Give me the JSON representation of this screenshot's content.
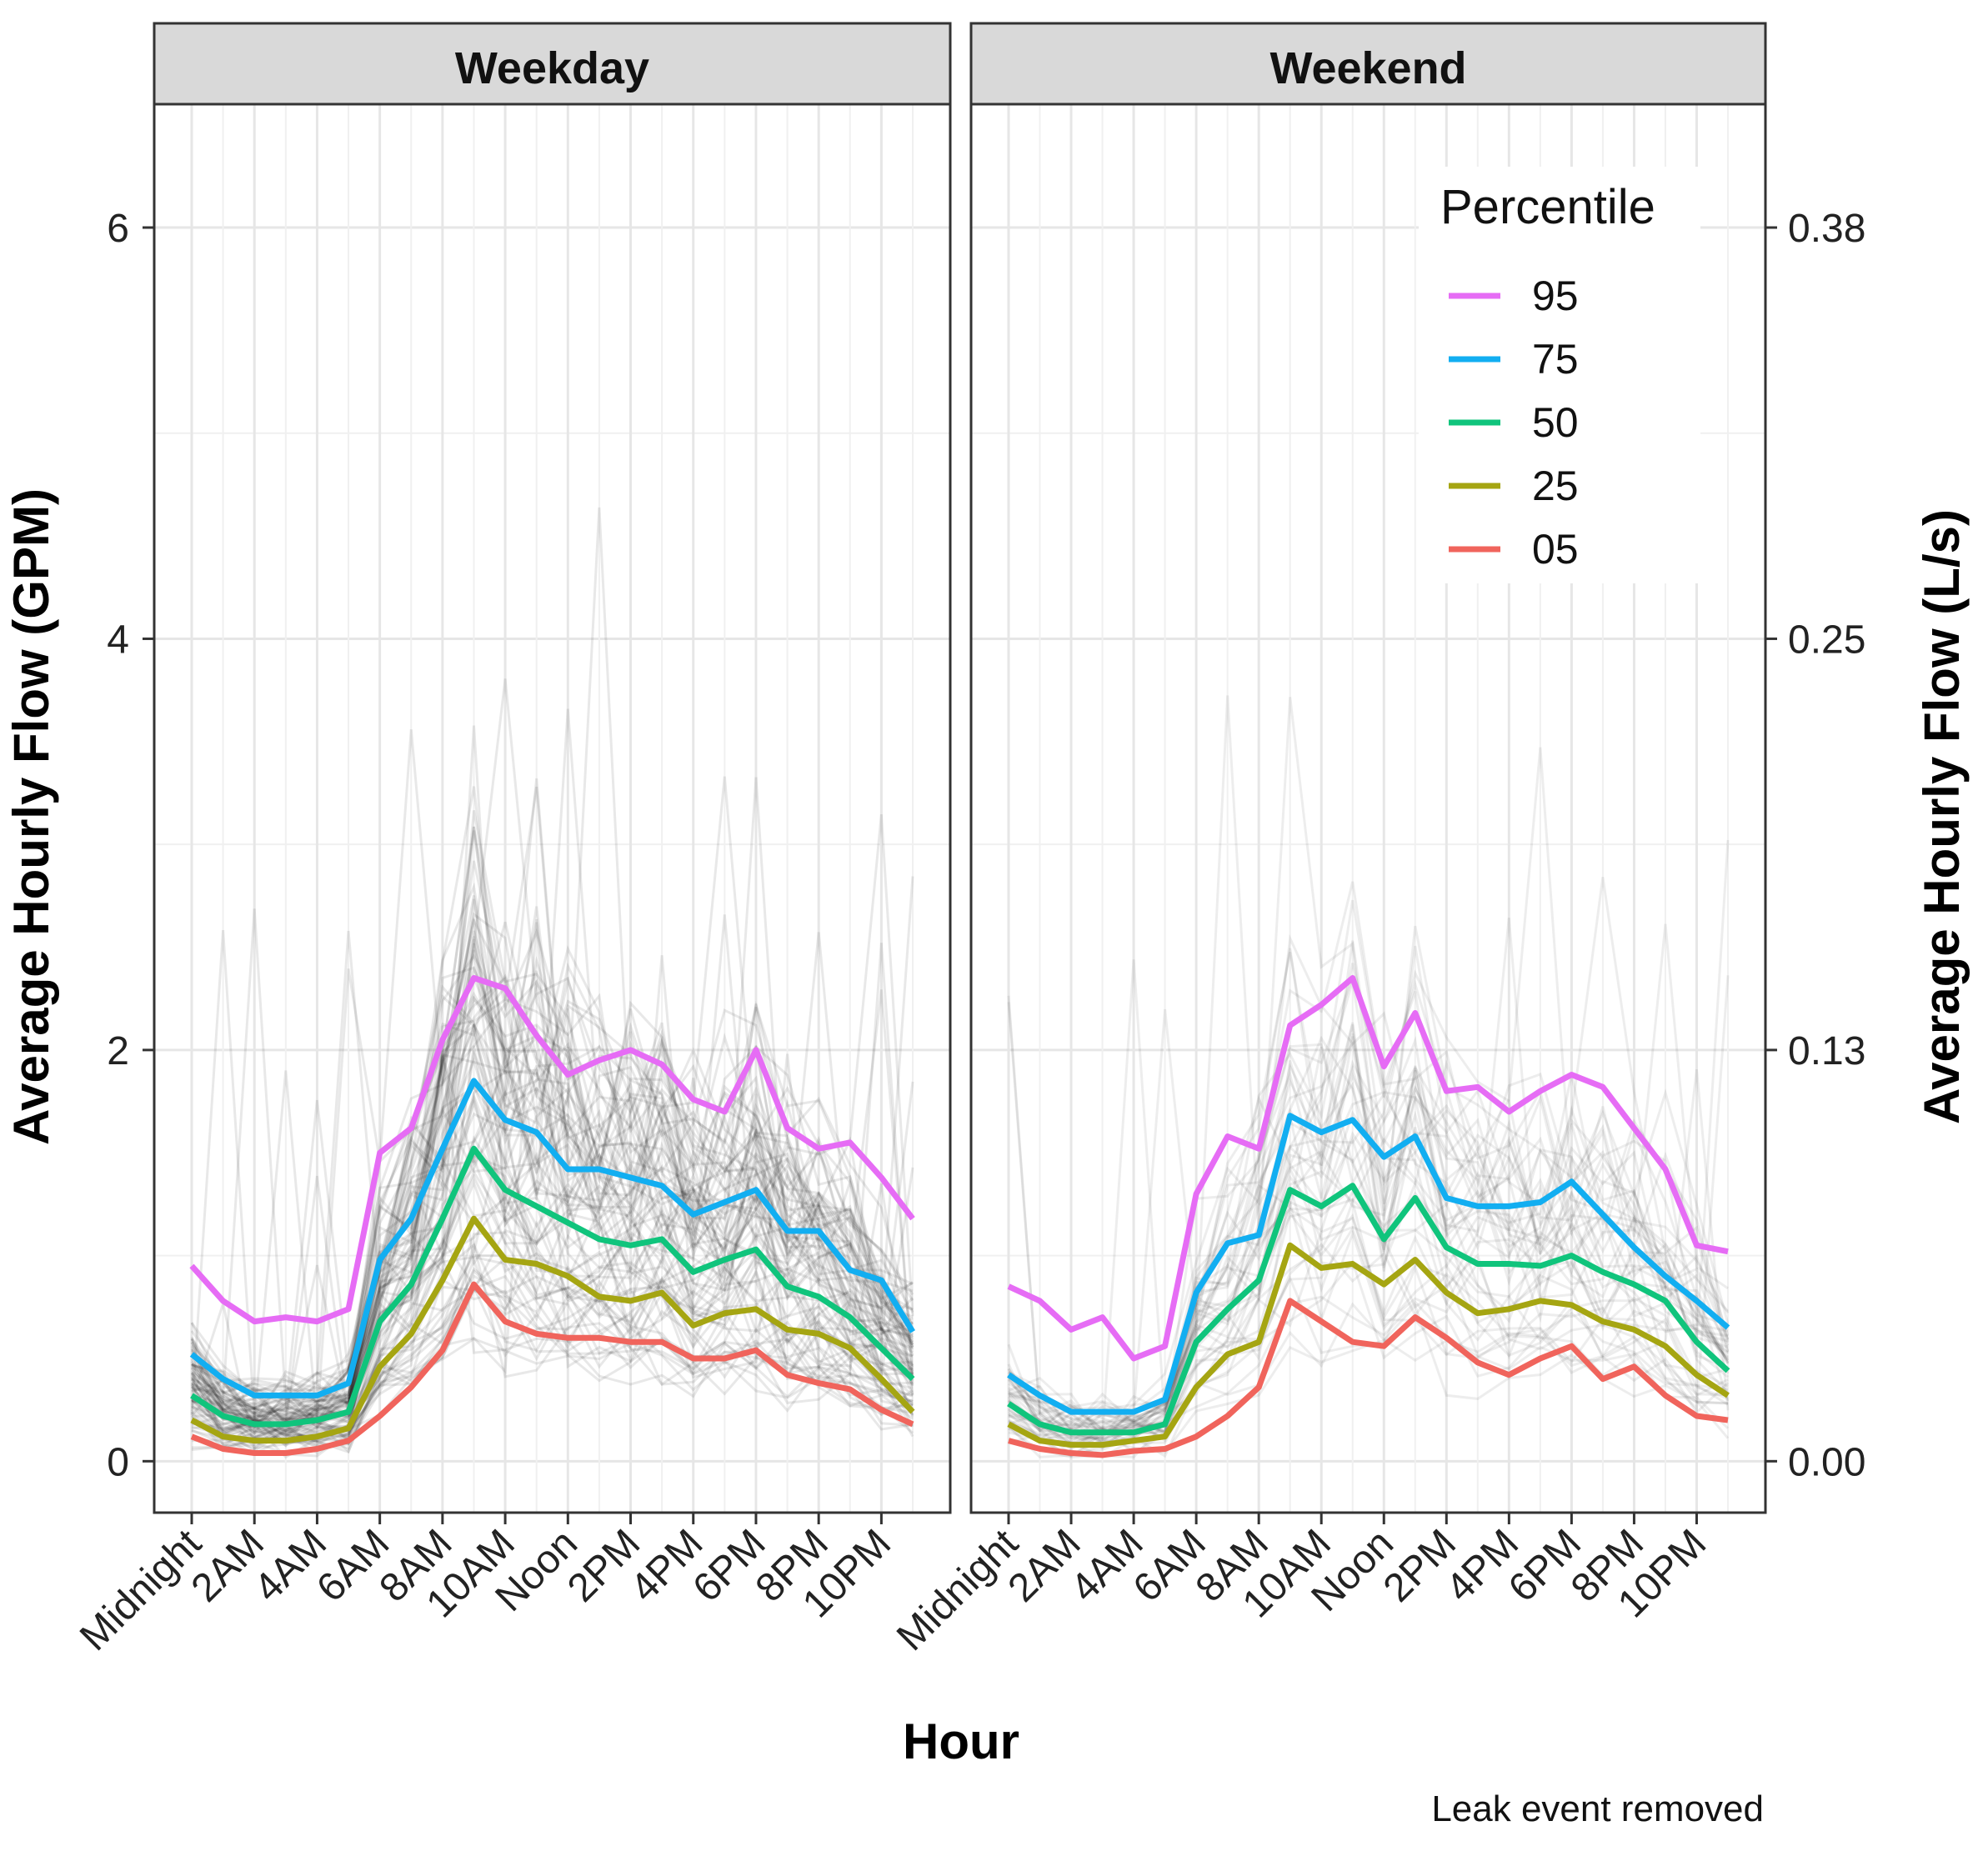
{
  "chart_data": {
    "type": "line",
    "caption": "Leak event removed",
    "xlabel": "Hour",
    "ylabel": "Average Hourly Flow (GPM)",
    "ylabel_secondary": "Average Hourly Flow (L/s)",
    "ylim": [
      -0.25,
      6.6
    ],
    "y_ticks": [
      0,
      2,
      4,
      6
    ],
    "y_tick_labels": [
      "0",
      "2",
      "4",
      "6"
    ],
    "y2_ticks": [
      0,
      2,
      4,
      6
    ],
    "y2_tick_labels": [
      "0.00",
      "0.13",
      "0.25",
      "0.38"
    ],
    "x_hours": [
      0,
      1,
      2,
      3,
      4,
      5,
      6,
      7,
      8,
      9,
      10,
      11,
      12,
      13,
      14,
      15,
      16,
      17,
      18,
      19,
      20,
      21,
      22,
      23
    ],
    "x_tick_hours": [
      0,
      2,
      4,
      6,
      8,
      10,
      12,
      14,
      16,
      18,
      20,
      22
    ],
    "x_tick_labels": [
      "Midnight",
      "2AM",
      "4AM",
      "6AM",
      "8AM",
      "10AM",
      "Noon",
      "2PM",
      "4PM",
      "6PM",
      "8PM",
      "10PM"
    ],
    "legend": {
      "title": "Percentile",
      "position": "top-right"
    },
    "series_meta": [
      {
        "name": "95",
        "color": "#E66CF5"
      },
      {
        "name": "75",
        "color": "#12AEF1"
      },
      {
        "name": "50",
        "color": "#10C47C"
      },
      {
        "name": "25",
        "color": "#A5A512"
      },
      {
        "name": "05",
        "color": "#F0645C"
      }
    ],
    "background_lines_color": "#000000",
    "panels": [
      {
        "title": "Weekday",
        "series": [
          {
            "name": "95",
            "values": [
              0.95,
              0.78,
              0.68,
              0.7,
              0.68,
              0.74,
              1.5,
              1.62,
              2.05,
              2.35,
              2.3,
              2.07,
              1.88,
              1.95,
              2.0,
              1.93,
              1.76,
              1.7,
              2.0,
              1.62,
              1.52,
              1.55,
              1.38,
              1.18
            ]
          },
          {
            "name": "75",
            "values": [
              0.52,
              0.4,
              0.32,
              0.32,
              0.32,
              0.38,
              0.98,
              1.18,
              1.52,
              1.85,
              1.66,
              1.6,
              1.42,
              1.42,
              1.38,
              1.34,
              1.2,
              1.26,
              1.32,
              1.12,
              1.12,
              0.93,
              0.88,
              0.63
            ]
          },
          {
            "name": "50",
            "values": [
              0.32,
              0.22,
              0.18,
              0.18,
              0.2,
              0.24,
              0.68,
              0.86,
              1.18,
              1.52,
              1.32,
              1.24,
              1.16,
              1.08,
              1.05,
              1.08,
              0.92,
              0.98,
              1.03,
              0.85,
              0.8,
              0.7,
              0.55,
              0.4
            ]
          },
          {
            "name": "25",
            "values": [
              0.2,
              0.12,
              0.1,
              0.1,
              0.12,
              0.16,
              0.46,
              0.62,
              0.88,
              1.18,
              0.98,
              0.96,
              0.9,
              0.8,
              0.78,
              0.82,
              0.66,
              0.72,
              0.74,
              0.64,
              0.62,
              0.55,
              0.4,
              0.24
            ]
          },
          {
            "name": "05",
            "values": [
              0.12,
              0.06,
              0.04,
              0.04,
              0.06,
              0.1,
              0.22,
              0.36,
              0.54,
              0.86,
              0.68,
              0.62,
              0.6,
              0.6,
              0.58,
              0.58,
              0.5,
              0.5,
              0.54,
              0.42,
              0.38,
              0.35,
              0.25,
              0.18
            ]
          }
        ]
      },
      {
        "title": "Weekend",
        "series": [
          {
            "name": "95",
            "values": [
              0.85,
              0.78,
              0.64,
              0.7,
              0.5,
              0.56,
              1.3,
              1.58,
              1.52,
              2.12,
              2.22,
              2.35,
              1.92,
              2.18,
              1.8,
              1.82,
              1.7,
              1.8,
              1.88,
              1.82,
              1.62,
              1.42,
              1.05,
              1.02
            ]
          },
          {
            "name": "75",
            "values": [
              0.42,
              0.32,
              0.24,
              0.24,
              0.24,
              0.3,
              0.82,
              1.06,
              1.1,
              1.68,
              1.6,
              1.66,
              1.48,
              1.58,
              1.28,
              1.24,
              1.24,
              1.26,
              1.36,
              1.2,
              1.04,
              0.9,
              0.78,
              0.65
            ]
          },
          {
            "name": "50",
            "values": [
              0.28,
              0.18,
              0.14,
              0.14,
              0.14,
              0.18,
              0.58,
              0.74,
              0.88,
              1.32,
              1.24,
              1.34,
              1.08,
              1.28,
              1.04,
              0.96,
              0.96,
              0.95,
              1.0,
              0.92,
              0.86,
              0.78,
              0.58,
              0.44
            ]
          },
          {
            "name": "25",
            "values": [
              0.18,
              0.1,
              0.08,
              0.08,
              0.1,
              0.12,
              0.36,
              0.52,
              0.58,
              1.05,
              0.94,
              0.96,
              0.86,
              0.98,
              0.82,
              0.72,
              0.74,
              0.78,
              0.76,
              0.68,
              0.64,
              0.56,
              0.42,
              0.32
            ]
          },
          {
            "name": "05",
            "values": [
              0.1,
              0.06,
              0.04,
              0.03,
              0.05,
              0.06,
              0.12,
              0.22,
              0.36,
              0.78,
              0.68,
              0.58,
              0.56,
              0.7,
              0.6,
              0.48,
              0.42,
              0.5,
              0.56,
              0.4,
              0.46,
              0.32,
              0.22,
              0.2
            ]
          }
        ]
      }
    ]
  }
}
